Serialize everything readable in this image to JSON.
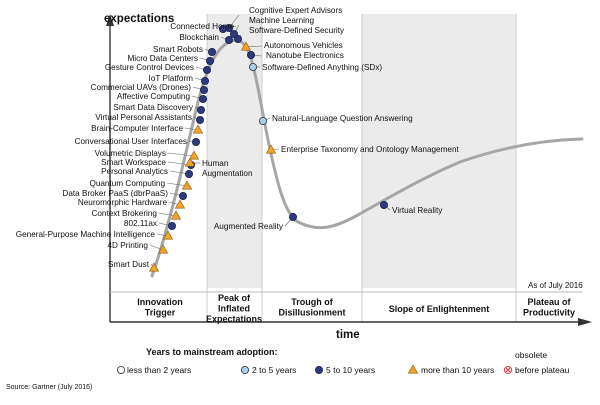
{
  "labels": {
    "y_axis": "expectations",
    "x_axis": "time",
    "as_of": "As of July 2016",
    "source": "Source: Gartner (July 2016)",
    "legend_title": "Years to mainstream adoption:"
  },
  "phases": [
    {
      "lines": [
        "Innovation",
        "Trigger"
      ]
    },
    {
      "lines": [
        "Peak of",
        "Inflated",
        "Expectations"
      ]
    },
    {
      "lines": [
        "Trough of",
        "Disillusionment"
      ]
    },
    {
      "lines": [
        "Slope of Enlightenment"
      ]
    },
    {
      "lines": [
        "Plateau of",
        "Productivity"
      ]
    }
  ],
  "legend": [
    {
      "label": "less than 2 years",
      "type": "white"
    },
    {
      "label": "2 to 5 years",
      "type": "light"
    },
    {
      "label": "5 to 10 years",
      "type": "dark"
    },
    {
      "label": "more than 10 years",
      "type": "triangle"
    },
    {
      "label_top": "obsolete",
      "label": "before plateau",
      "type": "obsolete"
    }
  ],
  "colors": {
    "curve": "#a6a6a6",
    "dark": "#2e3a7c",
    "light": "#a9d0ea",
    "triangle": "#f2a427",
    "obsolete": "#d9323c",
    "band": "#ebebeb",
    "axis": "#333333",
    "leader": "#666666"
  },
  "technologies": [
    {
      "name": "Cognitive Expert Advisors",
      "type": "dark"
    },
    {
      "name": "Machine Learning",
      "type": "dark"
    },
    {
      "name": "Software-Defined Security",
      "type": "dark"
    },
    {
      "name": "Connected Home",
      "type": "dark"
    },
    {
      "name": "Blockchain",
      "type": "dark"
    },
    {
      "name": "Autonomous Vehicles",
      "type": "triangle"
    },
    {
      "name": "Nanotube Electronics",
      "type": "dark"
    },
    {
      "name": "Software-Defined Anything (SDx)",
      "type": "light"
    },
    {
      "name": "Smart Robots",
      "type": "dark"
    },
    {
      "name": "Micro Data Centers",
      "type": "dark"
    },
    {
      "name": "Gesture Control Devices",
      "type": "dark"
    },
    {
      "name": "IoT Platform",
      "type": "dark"
    },
    {
      "name": "Commercial UAVs (Drones)",
      "type": "dark"
    },
    {
      "name": "Affective Computing",
      "type": "dark"
    },
    {
      "name": "Smart Data Discovery",
      "type": "dark"
    },
    {
      "name": "Virtual Personal Assistants",
      "type": "dark"
    },
    {
      "name": "Brain-Computer Interface",
      "type": "triangle"
    },
    {
      "name": "Conversational User Interfaces",
      "type": "dark"
    },
    {
      "name": "Volumetric Displays",
      "type": "triangle"
    },
    {
      "name": "Smart Workspace",
      "type": "dark"
    },
    {
      "name": "Personal Analytics",
      "type": "dark"
    },
    {
      "name": "Human Augmentation",
      "type": "triangle"
    },
    {
      "name": "Quantum Computing",
      "type": "triangle"
    },
    {
      "name": "Data Broker PaaS (dbrPaaS)",
      "type": "dark"
    },
    {
      "name": "Neuromorphic Hardware",
      "type": "triangle"
    },
    {
      "name": "Context Brokering",
      "type": "triangle"
    },
    {
      "name": "802.11ax",
      "type": "dark"
    },
    {
      "name": "General-Purpose Machine Intelligence",
      "type": "triangle"
    },
    {
      "name": "4D Printing",
      "type": "triangle"
    },
    {
      "name": "Smart Dust",
      "type": "triangle"
    },
    {
      "name": "Natural-Language Question Answering",
      "type": "light"
    },
    {
      "name": "Enterprise Taxonomy and Ontology Management",
      "type": "triangle"
    },
    {
      "name": "Augmented Reality",
      "type": "dark"
    },
    {
      "name": "Virtual Reality",
      "type": "dark"
    }
  ]
}
